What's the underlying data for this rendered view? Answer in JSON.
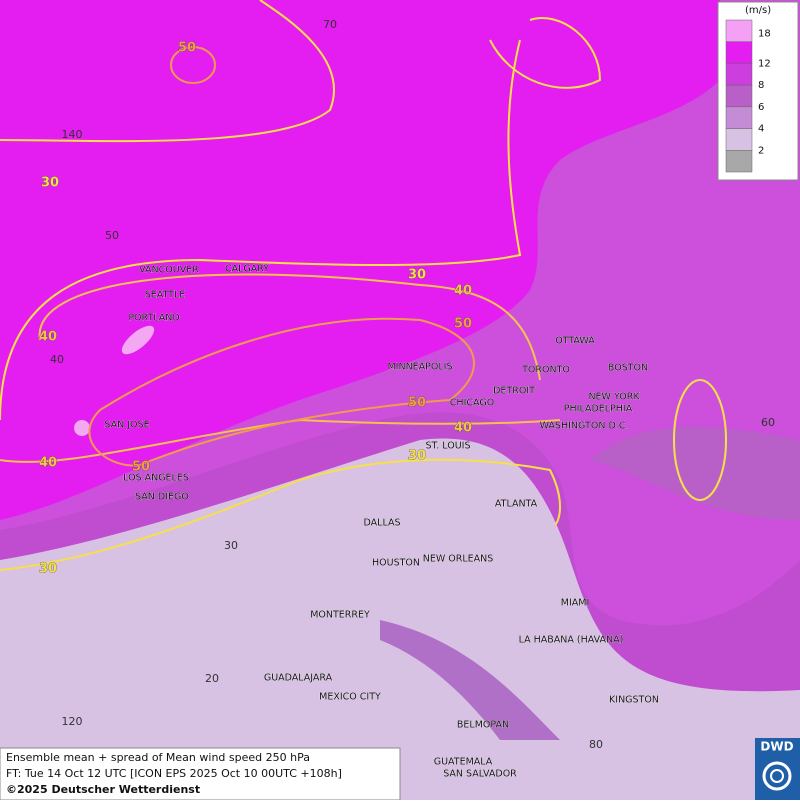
{
  "cities": [
    "VANCOUVER",
    "CALGARY",
    "SEATTLE",
    "PORTLAND",
    "SAN JOSE",
    "LOS ANGELES",
    "SAN DIEGO",
    "MINNEAPOLIS",
    "TORONTO",
    "OTTAWA",
    "DETROIT",
    "CHICAGO",
    "BOSTON",
    "NEW YORK",
    "PHILADELPHIA",
    "WASHINGTON D.C.",
    "ST. LOUIS",
    "ATLANTA",
    "DALLAS",
    "HOUSTON",
    "NEW ORLEANS",
    "MIAMI",
    "MONTERREY",
    "LA HABANA (HAVANA)",
    "GUADALAJARA",
    "MEXICO CITY",
    "KINGSTON",
    "BELMOPAN",
    "GUATEMALA",
    "SAN SALVADOR"
  ],
  "contour_labels": [
    50,
    30,
    30,
    40,
    50,
    40,
    50,
    40,
    30,
    40,
    50,
    30
  ],
  "grid_labels": [
    70,
    140,
    50,
    40,
    60,
    30,
    20,
    120,
    80
  ],
  "legend": {
    "unit": "(m/s)",
    "levels": [
      18,
      12,
      8,
      6,
      4,
      2
    ]
  },
  "caption": [
    "Ensemble mean + spread of Mean wind speed 250 hPa",
    "FT: Tue 14 Oct 12 UTC [ICON EPS 2025 Oct 10 00UTC +108h]",
    "©2025 Deutscher Wetterdienst"
  ],
  "logo": "DWD"
}
